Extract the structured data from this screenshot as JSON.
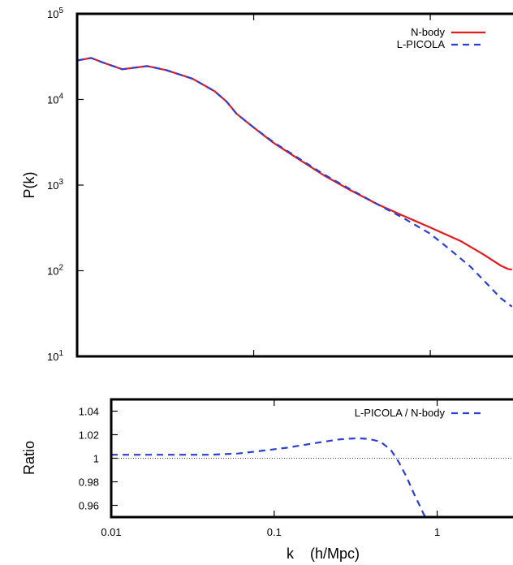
{
  "chart_data": [
    {
      "type": "line",
      "panel": "power-spectrum",
      "xscale": "log",
      "yscale": "log",
      "xlim": [
        0.01,
        3.2
      ],
      "ylim": [
        10,
        100000
      ],
      "ylabel": "P(k)",
      "y_ticks": [
        {
          "value": 10,
          "base": "10",
          "exp": "1"
        },
        {
          "value": 100,
          "base": "10",
          "exp": "2"
        },
        {
          "value": 1000,
          "base": "10",
          "exp": "3"
        },
        {
          "value": 10000,
          "base": "10",
          "exp": "4"
        },
        {
          "value": 100000,
          "base": "10",
          "exp": "5"
        }
      ],
      "legend_position": "top-right",
      "series": [
        {
          "name": "N-body",
          "color": "#e41a1c",
          "style": "solid",
          "points": [
            [
              0.01,
              28500
            ],
            [
              0.012,
              30500
            ],
            [
              0.014,
              27000
            ],
            [
              0.018,
              22500
            ],
            [
              0.025,
              24500
            ],
            [
              0.032,
              22000
            ],
            [
              0.045,
              17500
            ],
            [
              0.06,
              12500
            ],
            [
              0.07,
              9500
            ],
            [
              0.08,
              6800
            ],
            [
              0.1,
              4700
            ],
            [
              0.13,
              3100
            ],
            [
              0.18,
              2000
            ],
            [
              0.25,
              1300
            ],
            [
              0.35,
              880
            ],
            [
              0.5,
              600
            ],
            [
              0.7,
              440
            ],
            [
              1.0,
              320
            ],
            [
              1.5,
              220
            ],
            [
              2.0,
              155
            ],
            [
              2.5,
              115
            ],
            [
              2.75,
              105
            ],
            [
              2.9,
              103
            ]
          ]
        },
        {
          "name": "L-PICOLA",
          "color": "#2b3fd4",
          "style": "dashed",
          "points": [
            [
              0.01,
              28500
            ],
            [
              0.012,
              30500
            ],
            [
              0.014,
              27000
            ],
            [
              0.018,
              22500
            ],
            [
              0.025,
              24500
            ],
            [
              0.032,
              22000
            ],
            [
              0.045,
              17500
            ],
            [
              0.06,
              12500
            ],
            [
              0.07,
              9500
            ],
            [
              0.08,
              6800
            ],
            [
              0.1,
              4700
            ],
            [
              0.13,
              3150
            ],
            [
              0.18,
              2050
            ],
            [
              0.25,
              1330
            ],
            [
              0.35,
              900
            ],
            [
              0.5,
              600
            ],
            [
              0.7,
              415
            ],
            [
              1.0,
              270
            ],
            [
              1.3,
              175
            ],
            [
              1.7,
              110
            ],
            [
              2.1,
              70
            ],
            [
              2.5,
              48
            ],
            [
              2.9,
              38
            ]
          ]
        }
      ]
    },
    {
      "type": "line",
      "panel": "ratio",
      "xscale": "log",
      "xlim": [
        0.01,
        3.2
      ],
      "ylim": [
        0.95,
        1.05
      ],
      "xlabel": "k    (h/Mpc)",
      "ylabel": "Ratio",
      "x_ticks": [
        {
          "value": 0.01,
          "label": "0.01"
        },
        {
          "value": 0.1,
          "label": "0.1"
        },
        {
          "value": 1,
          "label": "1"
        }
      ],
      "y_ticks": [
        {
          "value": 0.96,
          "label": "0.96"
        },
        {
          "value": 0.98,
          "label": "0.98"
        },
        {
          "value": 1.0,
          "label": "1"
        },
        {
          "value": 1.02,
          "label": "1.02"
        },
        {
          "value": 1.04,
          "label": "1.04"
        }
      ],
      "reference_line": 1.0,
      "legend_position": "top-right",
      "series": [
        {
          "name": "L-PICOLA / N-body",
          "color": "#2b3fd4",
          "style": "dashed",
          "points": [
            [
              0.01,
              1.003
            ],
            [
              0.02,
              1.003
            ],
            [
              0.04,
              1.003
            ],
            [
              0.06,
              1.004
            ],
            [
              0.08,
              1.006
            ],
            [
              0.12,
              1.009
            ],
            [
              0.18,
              1.013
            ],
            [
              0.25,
              1.016
            ],
            [
              0.32,
              1.017
            ],
            [
              0.38,
              1.0165
            ],
            [
              0.45,
              1.014
            ],
            [
              0.52,
              1.007
            ],
            [
              0.58,
              0.997
            ],
            [
              0.65,
              0.984
            ],
            [
              0.72,
              0.97
            ],
            [
              0.78,
              0.96
            ],
            [
              0.83,
              0.952
            ],
            [
              0.86,
              0.949
            ]
          ]
        }
      ]
    }
  ]
}
